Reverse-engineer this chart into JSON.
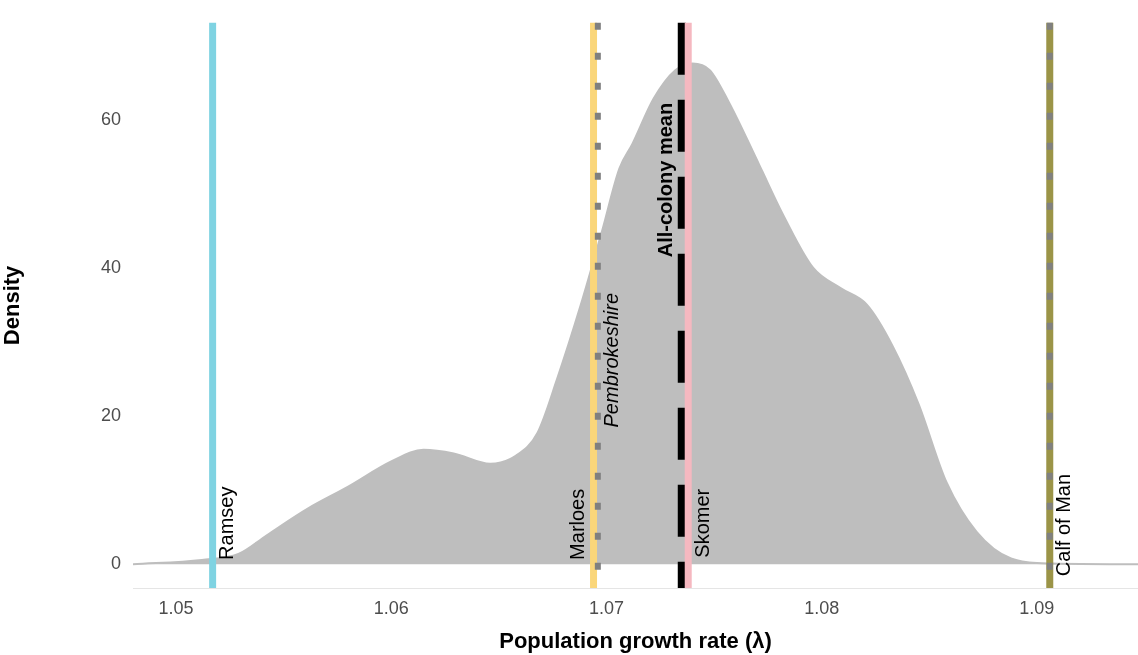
{
  "chart_data": {
    "type": "area",
    "xlabel": "Population growth rate (λ)",
    "ylabel": "Density",
    "x": [
      1.048,
      1.0512,
      1.0529,
      1.0542,
      1.0561,
      1.058,
      1.06,
      1.0615,
      1.0629,
      1.0646,
      1.0658,
      1.0668,
      1.0677,
      1.0688,
      1.0698,
      1.0706,
      1.0712,
      1.0722,
      1.0732,
      1.074,
      1.0748,
      1.0757,
      1.0771,
      1.0782,
      1.0796,
      1.0809,
      1.0821,
      1.0833,
      1.0845,
      1.0858,
      1.0872,
      1.0888,
      1.0907,
      1.0947
    ],
    "series": [
      {
        "color": "#bebebe",
        "values": [
          0,
          0.6,
          1.4,
          3.9,
          7.5,
          10.5,
          13.9,
          15.5,
          15.0,
          13.6,
          14.7,
          17.8,
          25.0,
          35.0,
          45.1,
          53.5,
          56.8,
          63.0,
          66.8,
          67.7,
          66.8,
          62.4,
          54.0,
          47.3,
          40.1,
          37.3,
          35.1,
          29.5,
          21.7,
          11.1,
          4.4,
          0.8,
          0.1,
          0
        ]
      }
    ],
    "xlim": [
      1.048,
      1.0947
    ],
    "ylim": [
      -3.2,
      73.2
    ],
    "xticks": [
      1.05,
      1.06,
      1.07,
      1.08,
      1.09
    ],
    "yticks": [
      0,
      20,
      40,
      60
    ],
    "grid": false,
    "legend": false,
    "ref_lines": [
      {
        "axis": "x",
        "value": 1.0517,
        "label": "Ramsey",
        "color": "#7fd3e2",
        "line_style": "solid"
      },
      {
        "axis": "x",
        "value": 1.0694,
        "label": "Marloes",
        "color": "#fad67a",
        "line_style": "solid"
      },
      {
        "axis": "x",
        "value": 1.0696,
        "label": "Pembrokeshire",
        "color": "#808080",
        "line_style": "dotted"
      },
      {
        "axis": "x",
        "value": 1.0735,
        "label": "All-colony mean",
        "color": "#000000",
        "line_style": "dashed"
      },
      {
        "axis": "x",
        "value": 1.0738,
        "label": "Skomer",
        "color": "#f5b8c0",
        "line_style": "solid"
      },
      {
        "axis": "x",
        "value": 1.0906,
        "label": "Calf of Man",
        "color": "#9b9447",
        "line_style": "solid"
      },
      {
        "axis": "x",
        "value": 1.0906,
        "color": "#808080",
        "line_style": "dotted"
      }
    ]
  }
}
